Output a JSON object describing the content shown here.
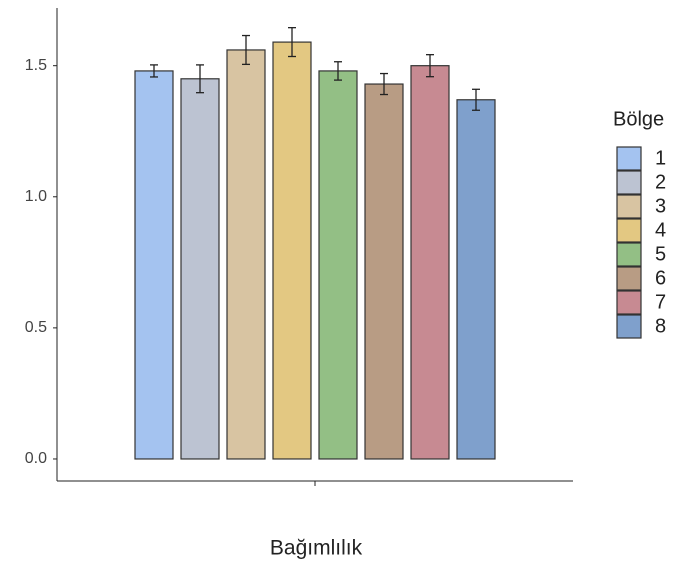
{
  "chart_data": {
    "type": "bar",
    "x_label": "Bağımlılık",
    "categories": [
      null
    ],
    "legend_title": "Bölge",
    "series": [
      {
        "name": "1",
        "color": "#a4c3f0",
        "values": [
          1.48
        ],
        "errors": [
          0.023
        ]
      },
      {
        "name": "2",
        "color": "#bcc3d2",
        "values": [
          1.45
        ],
        "errors": [
          0.053
        ]
      },
      {
        "name": "3",
        "color": "#d8c4a2",
        "values": [
          1.56
        ],
        "errors": [
          0.055
        ]
      },
      {
        "name": "4",
        "color": "#e3c882",
        "values": [
          1.59
        ],
        "errors": [
          0.055
        ]
      },
      {
        "name": "5",
        "color": "#93bf85",
        "values": [
          1.48
        ],
        "errors": [
          0.035
        ]
      },
      {
        "name": "6",
        "color": "#b89c84",
        "values": [
          1.43
        ],
        "errors": [
          0.04
        ]
      },
      {
        "name": "7",
        "color": "#c78a92",
        "values": [
          1.5
        ],
        "errors": [
          0.042
        ]
      },
      {
        "name": "8",
        "color": "#7fa0cc",
        "values": [
          1.37
        ],
        "errors": [
          0.04
        ]
      }
    ],
    "ylim": [
      -0.084,
      1.72
    ],
    "yticks": [
      {
        "value": 0,
        "label": "0.0"
      },
      0.5,
      {
        "value": 1,
        "label": "1.0"
      },
      1.5
    ],
    "grid": false
  }
}
